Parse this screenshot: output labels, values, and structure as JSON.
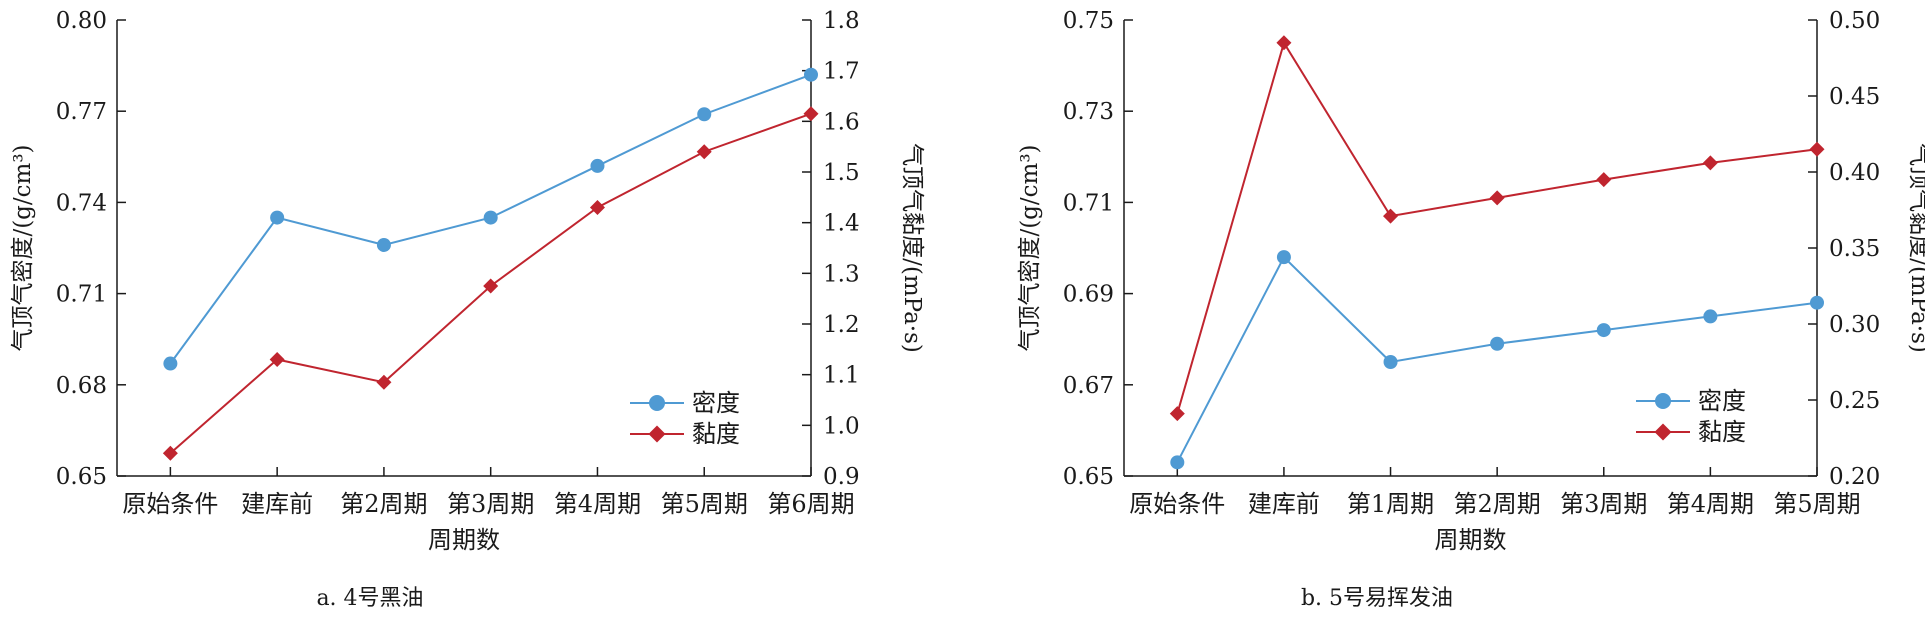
{
  "chart_data": [
    {
      "type": "line",
      "caption": "a. 4号黑油",
      "xlabel": "周期数",
      "ylabel": "气顶气密度/(g/cm³)",
      "y2label": "气顶气黏度/(mPa·s)",
      "categories": [
        "原始条件",
        "建库前",
        "第2周期",
        "第3周期",
        "第4周期",
        "第5周期",
        "第6周期"
      ],
      "ylim": [
        0.65,
        0.8
      ],
      "yticks": [
        0.65,
        0.68,
        0.71,
        0.74,
        0.77,
        0.8
      ],
      "y2lim": [
        0.9,
        1.8
      ],
      "y2ticks": [
        0.9,
        1.0,
        1.1,
        1.2,
        1.3,
        1.4,
        1.5,
        1.6,
        1.7,
        1.8
      ],
      "legend": "bottom-right",
      "series": [
        {
          "name": "密度",
          "axis": "left",
          "marker": "circle",
          "color": "#4f9ad3",
          "values": [
            0.687,
            0.735,
            0.726,
            0.735,
            0.752,
            0.769,
            0.782
          ]
        },
        {
          "name": "黏度",
          "axis": "right",
          "marker": "diamond",
          "color": "#c0252f",
          "values": [
            0.945,
            1.13,
            1.085,
            1.275,
            1.43,
            1.54,
            1.615
          ]
        }
      ]
    },
    {
      "type": "line",
      "caption": "b. 5号易挥发油",
      "xlabel": "周期数",
      "ylabel": "气顶气密度/(g/cm³)",
      "y2label": "气顶气黏度/(mPa·s)",
      "categories": [
        "原始条件",
        "建库前",
        "第1周期",
        "第2周期",
        "第3周期",
        "第4周期",
        "第5周期"
      ],
      "ylim": [
        0.65,
        0.75
      ],
      "yticks": [
        0.65,
        0.67,
        0.69,
        0.71,
        0.73,
        0.75
      ],
      "y2lim": [
        0.2,
        0.5
      ],
      "y2ticks": [
        0.2,
        0.25,
        0.3,
        0.35,
        0.4,
        0.45,
        0.5
      ],
      "legend": "bottom-right",
      "series": [
        {
          "name": "密度",
          "axis": "left",
          "marker": "circle",
          "color": "#4f9ad3",
          "values": [
            0.653,
            0.698,
            0.675,
            0.679,
            0.682,
            0.685,
            0.688
          ]
        },
        {
          "name": "黏度",
          "axis": "right",
          "marker": "diamond",
          "color": "#c0252f",
          "values": [
            0.241,
            0.485,
            0.371,
            0.383,
            0.395,
            0.406,
            0.415
          ]
        }
      ]
    }
  ],
  "captions": {
    "a": "a. 4号黑油",
    "b": "b. 5号易挥发油"
  },
  "colors": {
    "density": "#4f9ad3",
    "viscosity": "#c0252f",
    "axis": "#1a1a1a"
  }
}
